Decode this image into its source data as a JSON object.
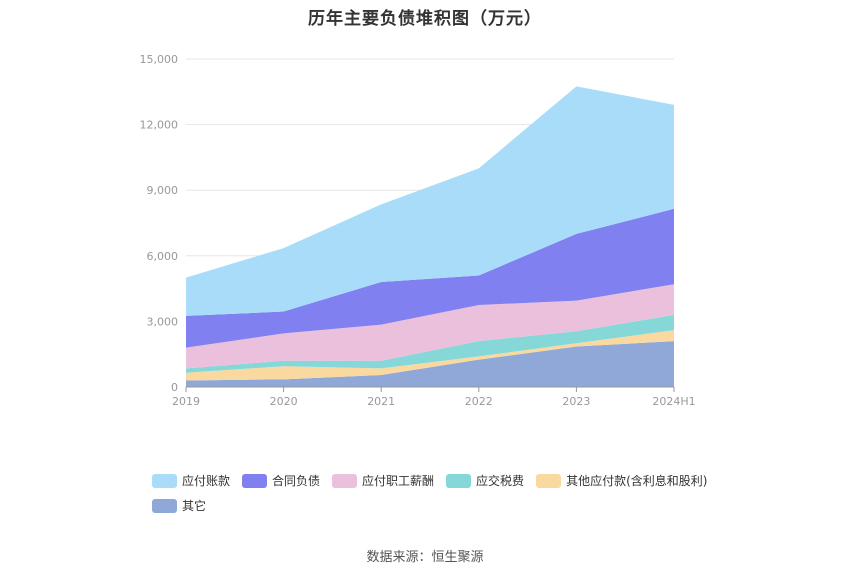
{
  "chart_data": {
    "type": "area",
    "stacked": true,
    "title": "历年主要负债堆积图（万元）",
    "categories": [
      "2019",
      "2020",
      "2021",
      "2022",
      "2023",
      "2024H1"
    ],
    "y_ticks": [
      "0",
      "3,000",
      "6,000",
      "9,000",
      "12,000",
      "15,000"
    ],
    "ylim": [
      0,
      15000
    ],
    "series": [
      {
        "name": "其它",
        "color": "#8fa8d8",
        "values": [
          300,
          350,
          550,
          1250,
          1850,
          2100
        ]
      },
      {
        "name": "其他应付款(含利息和股利)",
        "color": "#fad9a1",
        "values": [
          350,
          600,
          300,
          150,
          150,
          500
        ]
      },
      {
        "name": "应交税费",
        "color": "#86d8d8",
        "values": [
          200,
          250,
          350,
          700,
          550,
          700
        ]
      },
      {
        "name": "应付职工薪酬",
        "color": "#eac0dc",
        "values": [
          950,
          1250,
          1650,
          1650,
          1400,
          1400
        ]
      },
      {
        "name": "合同负债",
        "color": "#8080f0",
        "values": [
          1450,
          1000,
          1950,
          1350,
          3050,
          3450
        ]
      },
      {
        "name": "应付账款",
        "color": "#a8dcf8",
        "values": [
          1750,
          2900,
          3550,
          4900,
          6750,
          4750
        ]
      }
    ],
    "legend_order": [
      "应付账款",
      "合同负债",
      "应付职工薪酬",
      "应交税费",
      "其他应付款(含利息和股利)",
      "其它"
    ],
    "legend_position": "bottom"
  },
  "source_text": "数据来源：恒生聚源"
}
